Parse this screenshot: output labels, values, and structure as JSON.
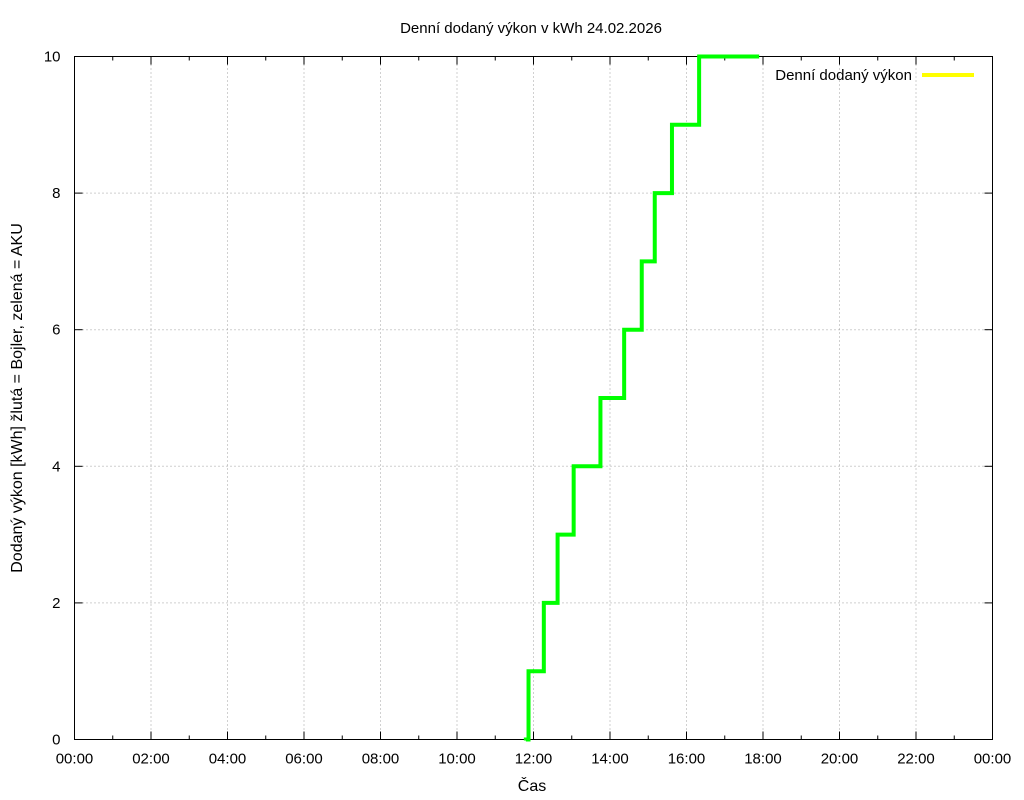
{
  "chart_data": {
    "type": "line",
    "step": true,
    "title": "Denní dodaný výkon v kWh 24.02.2026",
    "xlabel": "Čas",
    "ylabel": "Dodaný výkon [kWh]  žlutá = Bojler, zelená = AKU",
    "x_ticks": [
      "00:00",
      "02:00",
      "04:00",
      "06:00",
      "08:00",
      "10:00",
      "12:00",
      "14:00",
      "16:00",
      "18:00",
      "20:00",
      "22:00",
      "00:00"
    ],
    "y_ticks": [
      "0",
      "2",
      "4",
      "6",
      "8",
      "10"
    ],
    "xlim_hours": [
      0,
      24
    ],
    "ylim": [
      0,
      10
    ],
    "grid": true,
    "legend_position": "top-right",
    "legend": [
      {
        "name": "Denní dodaný výkon",
        "color": "#ffff00"
      }
    ],
    "series": [
      {
        "color": "#00ff00",
        "x_hours": [
          11.8,
          11.87,
          12.27,
          12.63,
          13.05,
          13.75,
          14.37,
          14.83,
          15.17,
          15.62,
          16.33,
          17.9
        ],
        "values": [
          0,
          1,
          2,
          3,
          4,
          5,
          6,
          7,
          8,
          9,
          10,
          10
        ]
      }
    ]
  }
}
